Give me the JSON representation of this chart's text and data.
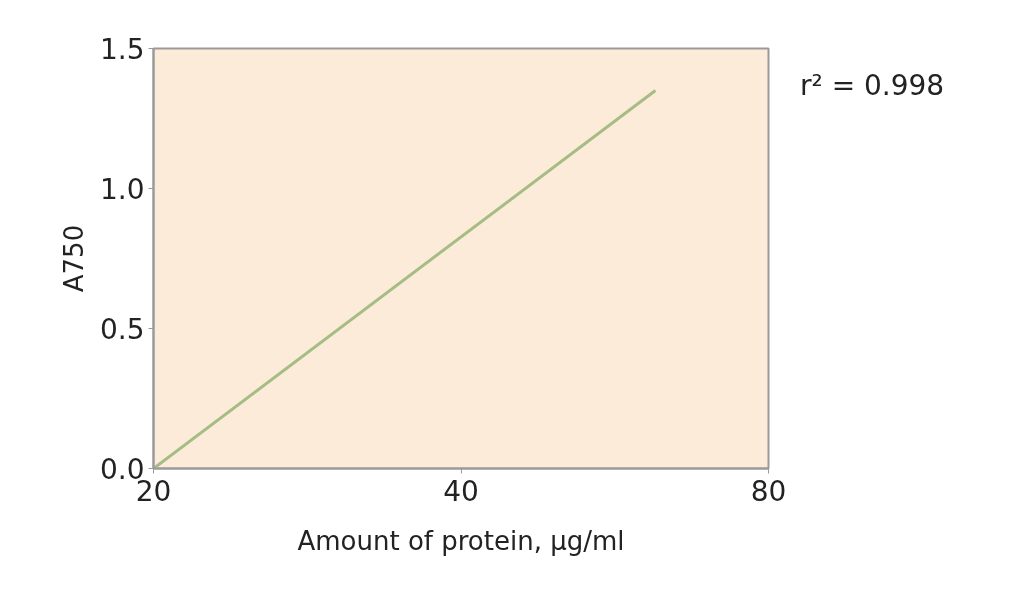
{
  "chart_data": {
    "type": "line",
    "xlabel": "Amount of protein, µg/ml",
    "ylabel": "A750",
    "annotations": [
      "r² = 0.998"
    ],
    "log": "x",
    "grid": false,
    "xlim": [
      20,
      80
    ],
    "ylim": [
      0,
      1.5
    ],
    "xticks": [
      20,
      40,
      80
    ],
    "yticks": [
      {
        "value": 0,
        "label": "0.0"
      },
      0.5,
      {
        "value": 1,
        "label": "1.0"
      },
      1.5
    ],
    "series": [
      {
        "color": "#a5bd84",
        "x": [
          20,
          62
        ],
        "values": [
          0,
          1.35
        ]
      }
    ]
  }
}
